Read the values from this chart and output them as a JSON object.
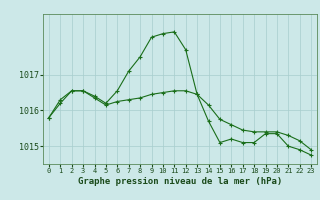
{
  "xlabel": "Graphe pression niveau de la mer (hPa)",
  "background_color": "#cce8e8",
  "plot_color": "#1a6e1a",
  "grid_color": "#a8cece",
  "x_ticks": [
    0,
    1,
    2,
    3,
    4,
    5,
    6,
    7,
    8,
    9,
    10,
    11,
    12,
    13,
    14,
    15,
    16,
    17,
    18,
    19,
    20,
    21,
    22,
    23
  ],
  "ylim": [
    1014.5,
    1018.7
  ],
  "yticks": [
    1015,
    1016,
    1017
  ],
  "line1_x": [
    0,
    1,
    2,
    3,
    4,
    5,
    6,
    7,
    8,
    9,
    10,
    11,
    12,
    13,
    14,
    15,
    16,
    17,
    18,
    19,
    20,
    21,
    22,
    23
  ],
  "line1_y": [
    1015.8,
    1016.3,
    1016.55,
    1016.55,
    1016.4,
    1016.2,
    1016.55,
    1017.1,
    1017.5,
    1018.05,
    1018.15,
    1018.2,
    1017.7,
    1016.45,
    1015.7,
    1015.1,
    1015.2,
    1015.1,
    1015.1,
    1015.35,
    1015.35,
    1015.0,
    1014.9,
    1014.75
  ],
  "line2_x": [
    0,
    1,
    2,
    3,
    4,
    5,
    6,
    7,
    8,
    9,
    10,
    11,
    12,
    13,
    14,
    15,
    16,
    17,
    18,
    19,
    20,
    21,
    22,
    23
  ],
  "line2_y": [
    1015.8,
    1016.2,
    1016.55,
    1016.55,
    1016.35,
    1016.15,
    1016.25,
    1016.3,
    1016.35,
    1016.45,
    1016.5,
    1016.55,
    1016.55,
    1016.45,
    1016.15,
    1015.75,
    1015.6,
    1015.45,
    1015.4,
    1015.4,
    1015.4,
    1015.3,
    1015.15,
    1014.9
  ],
  "xlabel_fontsize": 6.5,
  "xtick_fontsize": 5.0,
  "ytick_fontsize": 6.0
}
